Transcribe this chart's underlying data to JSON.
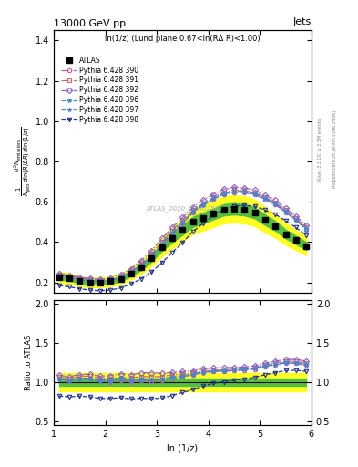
{
  "title": "13000 GeV pp",
  "title_right": "Jets",
  "annotation": "ln(1/z) (Lund plane 0.67<ln(RΔ R)<1.00)",
  "watermark": "ATLAS_2020_I1790256",
  "rivet_text": "Rivet 3.1.10, ≥ 2.5M events",
  "mcplots_text": "mcplots.cern.ch [arXiv:1306.3436]",
  "ylabel_ratio": "Ratio to ATLAS",
  "xlabel": "ln (1/z)",
  "xlim": [
    1.0,
    6.0
  ],
  "ylim_main": [
    0.15,
    1.45
  ],
  "ylim_ratio": [
    0.45,
    2.05
  ],
  "yticks_main": [
    0.2,
    0.4,
    0.6,
    0.8,
    1.0,
    1.2,
    1.4
  ],
  "yticks_ratio": [
    0.5,
    1.0,
    1.5,
    2.0
  ],
  "x": [
    1.1,
    1.3,
    1.5,
    1.7,
    1.9,
    2.1,
    2.3,
    2.5,
    2.7,
    2.9,
    3.1,
    3.3,
    3.5,
    3.7,
    3.9,
    4.1,
    4.3,
    4.5,
    4.7,
    4.9,
    5.1,
    5.3,
    5.5,
    5.7,
    5.9
  ],
  "atlas_y": [
    0.225,
    0.22,
    0.205,
    0.2,
    0.2,
    0.205,
    0.215,
    0.245,
    0.275,
    0.32,
    0.375,
    0.42,
    0.46,
    0.5,
    0.52,
    0.54,
    0.56,
    0.565,
    0.56,
    0.545,
    0.51,
    0.48,
    0.44,
    0.41,
    0.38
  ],
  "p390_y": [
    0.235,
    0.225,
    0.215,
    0.21,
    0.205,
    0.205,
    0.22,
    0.245,
    0.28,
    0.325,
    0.385,
    0.44,
    0.49,
    0.545,
    0.585,
    0.615,
    0.638,
    0.648,
    0.645,
    0.635,
    0.61,
    0.585,
    0.548,
    0.508,
    0.462
  ],
  "p391_y": [
    0.24,
    0.23,
    0.22,
    0.215,
    0.21,
    0.215,
    0.228,
    0.258,
    0.295,
    0.342,
    0.402,
    0.458,
    0.508,
    0.558,
    0.592,
    0.622,
    0.648,
    0.658,
    0.655,
    0.645,
    0.622,
    0.596,
    0.558,
    0.518,
    0.472
  ],
  "p392_y": [
    0.245,
    0.235,
    0.225,
    0.22,
    0.215,
    0.222,
    0.238,
    0.268,
    0.308,
    0.358,
    0.418,
    0.472,
    0.522,
    0.572,
    0.608,
    0.638,
    0.662,
    0.672,
    0.668,
    0.658,
    0.632,
    0.608,
    0.568,
    0.528,
    0.482
  ],
  "p396_y": [
    0.235,
    0.225,
    0.215,
    0.21,
    0.205,
    0.212,
    0.228,
    0.252,
    0.288,
    0.332,
    0.392,
    0.448,
    0.498,
    0.552,
    0.588,
    0.618,
    0.642,
    0.652,
    0.652,
    0.642,
    0.618,
    0.592,
    0.552,
    0.512,
    0.468
  ],
  "p397_y": [
    0.232,
    0.222,
    0.212,
    0.207,
    0.202,
    0.208,
    0.222,
    0.248,
    0.282,
    0.328,
    0.388,
    0.442,
    0.492,
    0.548,
    0.582,
    0.612,
    0.638,
    0.648,
    0.648,
    0.638,
    0.612,
    0.588,
    0.548,
    0.508,
    0.462
  ],
  "p398_y": [
    0.185,
    0.178,
    0.168,
    0.162,
    0.158,
    0.162,
    0.172,
    0.192,
    0.218,
    0.252,
    0.298,
    0.348,
    0.398,
    0.452,
    0.492,
    0.532,
    0.562,
    0.578,
    0.582,
    0.578,
    0.558,
    0.538,
    0.505,
    0.472,
    0.432
  ],
  "atlas_err_green": 0.05,
  "atlas_err_yellow": 0.12,
  "series_keys": [
    "p390_y",
    "p391_y",
    "p392_y",
    "p396_y",
    "p397_y",
    "p398_y"
  ],
  "series": [
    {
      "label": "Pythia 6.428 390",
      "color": "#c060a0",
      "marker": "o",
      "linestyle": "-."
    },
    {
      "label": "Pythia 6.428 391",
      "color": "#c07070",
      "marker": "s",
      "linestyle": "-."
    },
    {
      "label": "Pythia 6.428 392",
      "color": "#9060c0",
      "marker": "D",
      "linestyle": "-."
    },
    {
      "label": "Pythia 6.428 396",
      "color": "#4090c0",
      "marker": "*",
      "linestyle": "--"
    },
    {
      "label": "Pythia 6.428 397",
      "color": "#5080d0",
      "marker": "*",
      "linestyle": "--"
    },
    {
      "label": "Pythia 6.428 398",
      "color": "#203090",
      "marker": "v",
      "linestyle": "--"
    }
  ]
}
